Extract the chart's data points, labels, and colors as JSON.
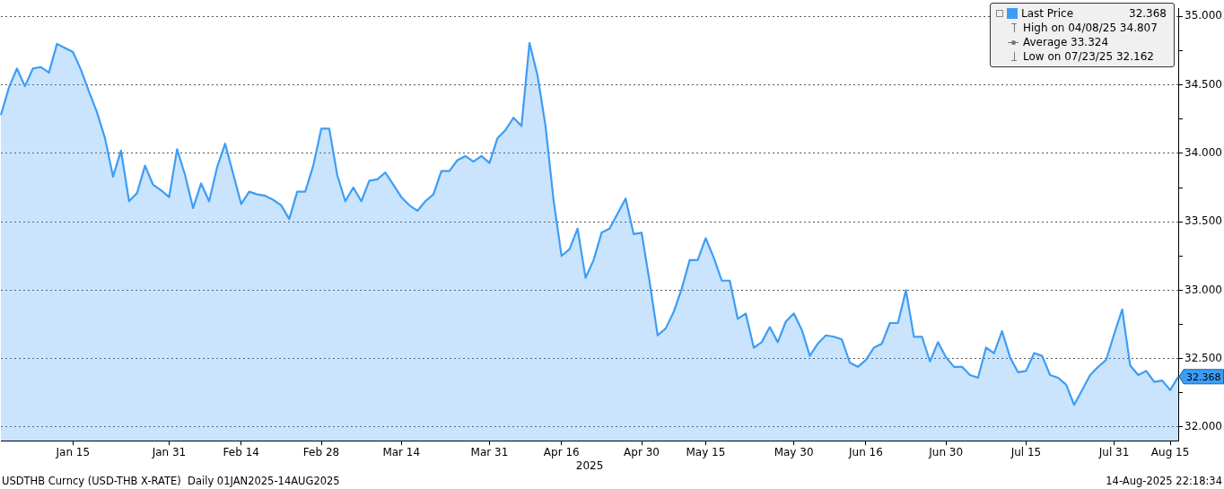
{
  "chart_data": {
    "type": "area",
    "xlabel": "2025",
    "categories": [
      null,
      null,
      null,
      null,
      null,
      null,
      null,
      null,
      null,
      "Jan 15",
      null,
      null,
      null,
      null,
      null,
      null,
      null,
      null,
      null,
      null,
      null,
      "Jan 31",
      null,
      null,
      null,
      null,
      null,
      null,
      null,
      null,
      "Feb 14",
      null,
      null,
      null,
      null,
      null,
      null,
      null,
      null,
      null,
      "Feb 28",
      null,
      null,
      null,
      null,
      null,
      null,
      null,
      null,
      null,
      "Mar 14",
      null,
      null,
      null,
      null,
      null,
      null,
      null,
      null,
      null,
      null,
      "Mar 31",
      null,
      null,
      null,
      null,
      null,
      null,
      null,
      null,
      "Apr 16",
      null,
      null,
      null,
      null,
      null,
      null,
      null,
      null,
      null,
      "Apr 30",
      null,
      null,
      null,
      null,
      null,
      null,
      null,
      "May 15",
      null,
      null,
      null,
      null,
      null,
      null,
      null,
      null,
      null,
      null,
      "May 30",
      null,
      null,
      null,
      null,
      null,
      null,
      null,
      null,
      "Jun 16",
      null,
      null,
      null,
      null,
      null,
      null,
      null,
      null,
      null,
      "Jun 30",
      null,
      null,
      null,
      null,
      null,
      null,
      null,
      null,
      null,
      "Jul 15",
      null,
      null,
      null,
      null,
      null,
      null,
      null,
      null,
      null,
      null,
      "Jul 31",
      null,
      null,
      null,
      null,
      null,
      null,
      "Aug 15",
      null
    ],
    "series": [
      {
        "name": "Last Price",
        "color": "#3d9df5",
        "values": [
          34.28,
          34.48,
          34.62,
          34.49,
          34.62,
          34.63,
          34.59,
          34.8,
          34.77,
          34.74,
          34.61,
          34.45,
          34.3,
          34.11,
          33.83,
          34.02,
          33.65,
          33.71,
          33.91,
          33.77,
          33.73,
          33.68,
          34.03,
          33.84,
          33.6,
          33.78,
          33.65,
          33.9,
          34.07,
          33.85,
          33.63,
          33.72,
          33.7,
          33.69,
          33.66,
          33.62,
          33.52,
          33.72,
          33.72,
          33.91,
          34.18,
          34.18,
          33.84,
          33.65,
          33.75,
          33.65,
          33.8,
          33.81,
          33.86,
          33.77,
          33.68,
          33.62,
          33.58,
          33.65,
          33.7,
          33.87,
          33.87,
          33.95,
          33.98,
          33.94,
          33.98,
          33.93,
          34.11,
          34.17,
          34.26,
          34.2,
          34.807,
          34.57,
          34.2,
          33.66,
          33.25,
          33.3,
          33.45,
          33.09,
          33.22,
          33.42,
          33.45,
          33.56,
          33.67,
          33.41,
          33.42,
          33.06,
          32.67,
          32.72,
          32.84,
          33.01,
          33.22,
          33.22,
          33.38,
          33.24,
          33.07,
          33.07,
          32.79,
          32.83,
          32.58,
          32.62,
          32.73,
          32.62,
          32.77,
          32.83,
          32.71,
          32.52,
          32.61,
          32.67,
          32.66,
          32.64,
          32.47,
          32.44,
          32.49,
          32.58,
          32.61,
          32.76,
          32.76,
          33.0,
          32.66,
          32.66,
          32.48,
          32.62,
          32.51,
          32.44,
          32.44,
          32.38,
          32.36,
          32.58,
          32.54,
          32.7,
          32.51,
          32.4,
          32.41,
          32.54,
          32.52,
          32.38,
          32.36,
          32.31,
          32.162,
          32.27,
          32.38,
          32.44,
          32.49,
          32.68,
          32.86,
          32.45,
          32.38,
          32.41,
          32.33,
          32.34,
          32.27,
          32.368
        ]
      }
    ],
    "ylim": [
      31.9,
      35.06
    ],
    "yticks": [
      {
        "value": 32,
        "label": "32.000"
      },
      {
        "value": 32.25,
        "label": null
      },
      {
        "value": 32.5,
        "label": "32.500"
      },
      {
        "value": 32.75,
        "label": null
      },
      {
        "value": 33,
        "label": "33.000"
      },
      {
        "value": 33.25,
        "label": null
      },
      {
        "value": 33.5,
        "label": "33.500"
      },
      {
        "value": 33.75,
        "label": null
      },
      {
        "value": 34,
        "label": "34.000"
      },
      {
        "value": 34.25,
        "label": null
      },
      {
        "value": 34.5,
        "label": "34.500"
      },
      {
        "value": 34.75,
        "label": null
      },
      {
        "value": 35,
        "label": "35.000"
      }
    ],
    "grid": "y",
    "legend": "top right",
    "line_style": "solid",
    "marker": "none",
    "annotations": [
      "32.368",
      "High on 04/08/25 34.807",
      "Average 33.324",
      "Low on 07/23/25 32.162",
      "USDTHB Curncy (USD-THB X-RATE)  Daily 01JAN2025-14AUG2025",
      "14-Aug-2025 22:18:34",
      "32.368"
    ]
  }
}
